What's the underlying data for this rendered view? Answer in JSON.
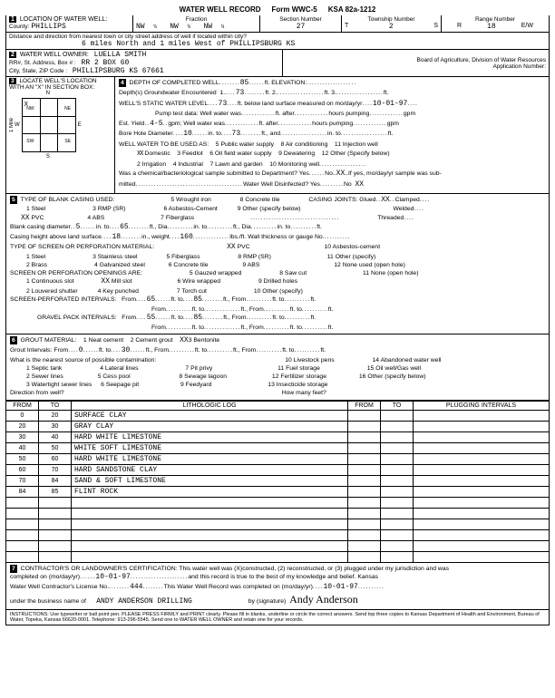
{
  "header": {
    "title": "WATER WELL RECORD",
    "form": "Form WWC-5",
    "ksa": "KSA 82a-1212"
  },
  "sec1": {
    "label": "LOCATION OF WATER WELL:",
    "county_label": "County:",
    "county": "PHILLIPS",
    "fraction_label": "Fraction",
    "fractions": [
      "NW",
      "¼",
      "NW",
      "¼",
      "NW",
      "¼"
    ],
    "section_label": "Section Number",
    "section": "27",
    "township_label": "Township Number",
    "township": "2",
    "township_dir": "S",
    "range_label": "Range Number",
    "range": "18",
    "range_dir": "W",
    "dist_label": "Distance and direction from nearest town or city street address of well if located within city?",
    "distance": "6 miles North and 1 miles West of PHILLIPSBURG KS"
  },
  "sec2": {
    "label": "WATER WELL OWNER:",
    "owner": "LUELLA SMITH",
    "addr_label": "RR#, St. Address, Box #  :",
    "addr": "RR 2 BOX 60",
    "city_label": "City, State, ZIP Code   :",
    "city": "PHILLIPSBURG KS  67661",
    "board": "Board of Agriculture, Division of Water Resources",
    "appno": "Application Number:"
  },
  "sec3": {
    "label": "LOCATE WELL'S LOCATION WITH AN \"X\" IN SECTION BOX:",
    "side": "1 Mile",
    "n": "N",
    "s": "S",
    "e": "E",
    "w": "W",
    "nw": "NW",
    "ne": "NE",
    "sw": "SW",
    "se": "SE"
  },
  "sec4": {
    "depth_label": "DEPTH OF COMPLETED WELL",
    "depth": "85",
    "elev_label": "ft. ELEVATION:",
    "gw_label": "Depth(s) Groundwater Encountered",
    "gw1": "73",
    "swl_label": "WELL'S STATIC WATER LEVEL",
    "swl": "73",
    "swl_date_label": "ft. below land surface measured on mo/day/yr",
    "swl_date": "10-01-97",
    "pump_label": "Pump test data:  Well water was",
    "yield_label": "Est. Yield",
    "yield": "4-5",
    "yield_unit": "gpm; Well water was",
    "bore_label": "Bore Hole Diameter",
    "bore1": "10",
    "bore2": "73",
    "use_label": "WELL WATER TO BE USED AS:",
    "uses": [
      "5 Public water supply",
      "8 Air conditioning",
      "11 Injection well",
      "3 Feedlot",
      "6 Oil field water supply",
      "9 Dewatering",
      "12 Other (Specify below)",
      "2 Irrigation",
      "4 Industrial",
      "7 Lawn and garden",
      "10 Monitoring well"
    ],
    "domestic": "Domestic",
    "chem": "Was a chemical/bacteriological sample submitted to Department? Yes",
    "chem_no": "No",
    "chem_tail": "If yes, mo/day/yr sample was sub-",
    "mitted": "mitted",
    "disinfect": "Water Well Disinfected?  Yes",
    "disinfect_no": "No",
    "disinfect_val": "XX"
  },
  "sec5": {
    "label": "TYPE OF BLANK CASING USED:",
    "items": [
      "1 Steel",
      "3 RMP (SR)",
      "5 Wrought iron",
      "8 Concrete tile",
      "2 PVC",
      "4 ABS",
      "6 Asbestos-Cement",
      "9 Other (specify below)",
      "7 Fiberglass"
    ],
    "joints": "CASING JOINTS: Glued",
    "joints_val": "XX",
    "joints2": "Clamped",
    "welded": "Welded",
    "threaded": "Threaded",
    "bcd_label": "Blank casing diameter",
    "bcd": "5",
    "bcd2": "65",
    "chs_label": "Casing height above land surface",
    "chs": "18",
    "chs_wt_label": "in., weight",
    "chs_wt": "160",
    "chs_tail": "lbs./ft. Wall thickness or gauge No.",
    "screen_label": "TYPE OF SCREEN OR PERFORATION MATERIAL:",
    "screen_chk": "PVC",
    "screen_items": [
      "1 Steel",
      "3 Stainless steel",
      "5 Fiberglass",
      "8 RMP (SR)",
      "10 Asbestos-cement",
      "2 Brass",
      "4 Galvanized steel",
      "6 Concrete tile",
      "9 ABS",
      "11 Other (specify)",
      "12 None used (open hole)"
    ],
    "open_label": "SCREEN OR PERFORATION OPENINGS ARE:",
    "open_items": [
      "1 Continuous slot",
      "Mill slot",
      "5 Gauzed wrapped",
      "8 Saw cut",
      "11 None (open hole)",
      "2 Louvered shutter",
      "4 Key punched",
      "6 Wire wrapped",
      "9 Drilled holes",
      "7 Torch cut",
      "10 Other (specify)"
    ],
    "spi_label": "SCREEN-PERFORATED INTERVALS:",
    "spi_from": "65",
    "spi_to": "85",
    "gpi_label": "GRAVEL PACK INTERVALS:",
    "gpi_from": "55",
    "gpi_to": "85"
  },
  "sec6": {
    "label": "GROUT MATERIAL:",
    "items": [
      "1 Neat cement",
      "2 Cement grout",
      "Bentonite"
    ],
    "gi_label": "Grout Intervals:    From",
    "gi_from": "0",
    "gi_to": "30",
    "contam_label": "What is the nearest source of possible contamination:",
    "contam_items": [
      "1 Septic tank",
      "4 Lateral lines",
      "7 Pit privy",
      "10 Livestock pens",
      "14 Abandoned water well",
      "2 Sewer lines",
      "5 Cess pool",
      "8 Sewage lagoon",
      "11 Fuel storage",
      "15 Oil well/Gas well",
      "3 Watertight sewer lines",
      "6 Seepage pit",
      "9 Feedyard",
      "12 Fertilizer storage",
      "16 Other (specify below)",
      "13 Insecticide storage"
    ],
    "dir_label": "Direction from well?",
    "feet_label": "How many feet?"
  },
  "log": {
    "headers": [
      "FROM",
      "TO",
      "LITHOLOGIC LOG",
      "FROM",
      "TO",
      "PLUGGING INTERVALS"
    ],
    "rows": [
      [
        "0",
        "20",
        "SURFACE CLAY",
        "",
        "",
        ""
      ],
      [
        "20",
        "30",
        "GRAY CLAY",
        "",
        "",
        ""
      ],
      [
        "30",
        "40",
        "HARD WHITE LIMESTONE",
        "",
        "",
        ""
      ],
      [
        "40",
        "50",
        "WHITE SOFT LIMESTONE",
        "",
        "",
        ""
      ],
      [
        "50",
        "60",
        "HARD WHITE LIMESTONE",
        "",
        "",
        ""
      ],
      [
        "60",
        "70",
        "HARD SANDSTONE CLAY",
        "",
        "",
        ""
      ],
      [
        "70",
        "84",
        "SAND & SOFT LIMESTONE",
        "",
        "",
        ""
      ],
      [
        "84",
        "85",
        "FLINT ROCK",
        "",
        "",
        ""
      ],
      [
        "",
        "",
        "",
        "",
        "",
        ""
      ],
      [
        "",
        "",
        "",
        "",
        "",
        ""
      ],
      [
        "",
        "",
        "",
        "",
        "",
        ""
      ],
      [
        "",
        "",
        "",
        "",
        "",
        ""
      ],
      [
        "",
        "",
        "",
        "",
        "",
        ""
      ],
      [
        "",
        "",
        "",
        "",
        "",
        ""
      ]
    ]
  },
  "sec7": {
    "cert": "CONTRACTOR'S OR LANDOWNER'S CERTIFICATION: This water well was (X)constructed, (2) reconstructed, or (3) plugged under my jurisdiction and was",
    "comp_label": "completed on (mo/day/yr)",
    "comp": "10-01-97",
    "tail1": "and this record is true to the best of my knowledge and belief. Kansas",
    "lic_label": "Water Well Contractor's License No.",
    "lic": "444",
    "rec_label": "This Water Well Record was completed on (mo/day/yr)",
    "rec": "10-01-97",
    "bus_label": "under the business name of",
    "bus": "ANDY ANDERSON DRILLING",
    "sig_label": "by (signature)",
    "sig": "Andy Anderson"
  },
  "footer": "INSTRUCTIONS: Use typewriter or ball point pen. PLEASE PRESS FIRMLY and PRINT clearly. Please fill in blanks, underline or circle the correct answers. Send top three copies to Kansas Department of Health and Environment, Bureau of Water, Topeka, Kansas 66620-0001. Telephone: 913-296-5545. Send one to WATER WELL OWNER and retain one for your records."
}
